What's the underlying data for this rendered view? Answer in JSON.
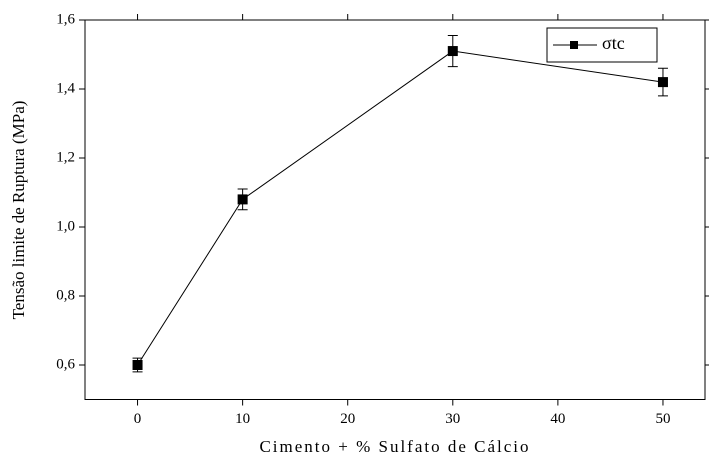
{
  "chart_data": {
    "type": "line",
    "xlabel": "Cimento + % Sulfato de Cálcio",
    "ylabel": "Tensão limite de Ruptura (MPa)",
    "x": [
      0,
      10,
      30,
      50
    ],
    "series": [
      {
        "name": "σtc",
        "color": "#000000",
        "values": [
          0.6,
          1.08,
          1.51,
          1.42
        ],
        "errors": [
          0.02,
          0.03,
          0.045,
          0.04
        ]
      }
    ],
    "xlim": [
      -5,
      54
    ],
    "xticks": [
      0,
      10,
      20,
      30,
      40,
      50
    ],
    "ylim": [
      0.5,
      1.6
    ],
    "yticks": [
      {
        "value": 0.6,
        "label": "0,6"
      },
      {
        "value": 0.8,
        "label": "0,8"
      },
      {
        "value": 1.0,
        "label": "1,0"
      },
      {
        "value": 1.2,
        "label": "1,2"
      },
      {
        "value": 1.4,
        "label": "1,4"
      },
      {
        "value": 1.6,
        "label": "1,6"
      }
    ],
    "grid": false,
    "legend": "upper right"
  }
}
